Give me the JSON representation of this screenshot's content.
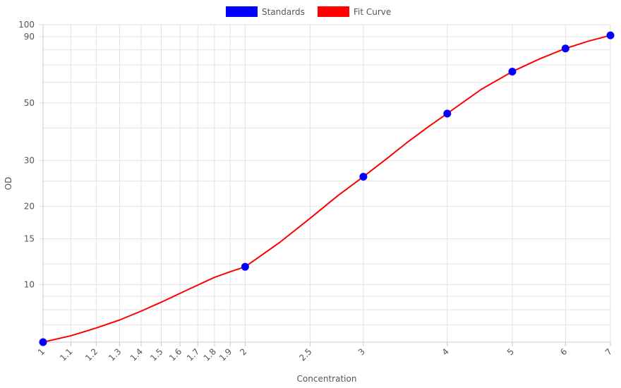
{
  "chart_data": {
    "type": "scatter",
    "xscale": "log",
    "yscale": "log",
    "xlabel": "Concentration",
    "ylabel": "OD",
    "xlim": [
      1,
      7
    ],
    "ylim": [
      6,
      100
    ],
    "x_ticks": [
      "1",
      "1.1",
      "1.2",
      "1.3",
      "1.4",
      "1.5",
      "1.6",
      "1.7",
      "1.8",
      "1.9",
      "2",
      "2.5",
      "3",
      "4",
      "5",
      "6",
      "7"
    ],
    "y_ticks": [
      "10",
      "15",
      "20",
      "30",
      "50",
      "90",
      "100"
    ],
    "grid": true,
    "legend_position": "top",
    "series": [
      {
        "name": "Standards",
        "type": "scatter",
        "color": "#0000ff",
        "points": [
          [
            1,
            6.0
          ],
          [
            2,
            11.7
          ],
          [
            3,
            26.0
          ],
          [
            4,
            45.5
          ],
          [
            5,
            66.0
          ],
          [
            6,
            81.0
          ],
          [
            7,
            91.0
          ]
        ]
      },
      {
        "name": "Fit Curve",
        "type": "line",
        "color": "#ff0000",
        "points": [
          [
            1,
            6.0
          ],
          [
            1.1,
            6.35
          ],
          [
            1.2,
            6.8
          ],
          [
            1.3,
            7.3
          ],
          [
            1.4,
            7.9
          ],
          [
            1.5,
            8.55
          ],
          [
            1.6,
            9.25
          ],
          [
            1.7,
            9.95
          ],
          [
            1.8,
            10.65
          ],
          [
            1.9,
            11.2
          ],
          [
            2,
            11.7
          ],
          [
            2.25,
            14.5
          ],
          [
            2.5,
            18.0
          ],
          [
            2.75,
            22.0
          ],
          [
            3,
            26.0
          ],
          [
            3.25,
            30.5
          ],
          [
            3.5,
            35.5
          ],
          [
            3.75,
            40.5
          ],
          [
            4,
            45.5
          ],
          [
            4.5,
            56.5
          ],
          [
            5,
            66.0
          ],
          [
            5.5,
            74.0
          ],
          [
            6,
            81.0
          ],
          [
            6.5,
            86.5
          ],
          [
            7,
            91.0
          ]
        ]
      }
    ]
  }
}
